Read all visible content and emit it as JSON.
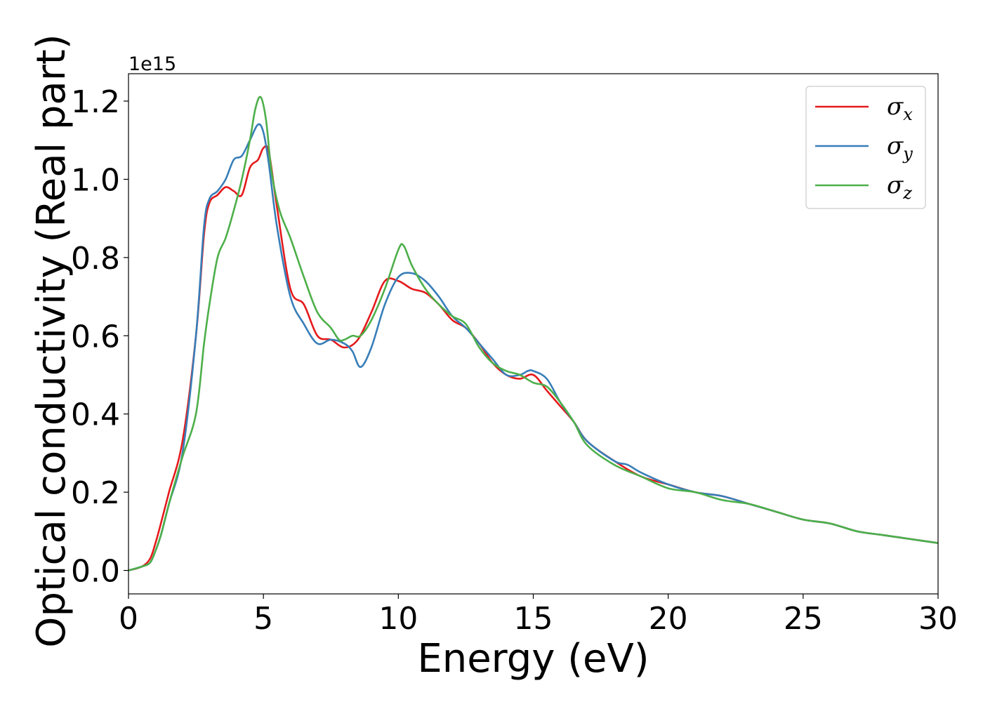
{
  "chart_data": {
    "type": "line",
    "xlabel": "Energy (eV)",
    "ylabel": "Optical conductivity (Real part)",
    "y_offset_label": "1e15",
    "xlim": [
      0,
      30
    ],
    "ylim": [
      -0.06,
      1.27
    ],
    "xticks": [
      0,
      5,
      10,
      15,
      20,
      25,
      30
    ],
    "xtick_labels": [
      "0",
      "5",
      "10",
      "15",
      "20",
      "25",
      "30"
    ],
    "yticks": [
      0.0,
      0.2,
      0.4,
      0.6,
      0.8,
      1.0,
      1.2
    ],
    "ytick_labels": [
      "0.0",
      "0.2",
      "0.4",
      "0.6",
      "0.8",
      "1.0",
      "1.2"
    ],
    "grid": false,
    "legend_position": "top-right",
    "series": [
      {
        "name": "σ",
        "subscript": "x",
        "color": "#e41a1c",
        "x": [
          0,
          0.5,
          0.8,
          1.0,
          1.2,
          1.5,
          2.0,
          2.5,
          2.8,
          3.0,
          3.3,
          3.6,
          3.9,
          4.2,
          4.5,
          4.8,
          5.0,
          5.2,
          5.5,
          6.0,
          6.5,
          7.0,
          7.5,
          8.0,
          8.5,
          9.0,
          9.5,
          10.0,
          10.5,
          11.0,
          11.5,
          12.0,
          12.5,
          13.0,
          13.5,
          14.0,
          14.5,
          15.0,
          15.5,
          16.0,
          16.5,
          17.0,
          18.0,
          19.0,
          20.0,
          21.0,
          22.0,
          23.0,
          24.0,
          25.0,
          26.0,
          27.0,
          28.0,
          29.0,
          30.0
        ],
        "y": [
          0.0,
          0.01,
          0.03,
          0.07,
          0.12,
          0.2,
          0.33,
          0.6,
          0.86,
          0.94,
          0.96,
          0.98,
          0.97,
          0.96,
          1.03,
          1.05,
          1.08,
          1.07,
          0.93,
          0.72,
          0.68,
          0.6,
          0.59,
          0.57,
          0.59,
          0.66,
          0.74,
          0.74,
          0.72,
          0.71,
          0.68,
          0.64,
          0.62,
          0.58,
          0.53,
          0.5,
          0.49,
          0.5,
          0.46,
          0.42,
          0.38,
          0.33,
          0.28,
          0.24,
          0.22,
          0.2,
          0.19,
          0.17,
          0.15,
          0.13,
          0.12,
          0.1,
          0.09,
          0.08,
          0.07
        ]
      },
      {
        "name": "σ",
        "subscript": "y",
        "color": "#377eb8",
        "x": [
          0,
          0.5,
          0.8,
          1.0,
          1.2,
          1.5,
          2.0,
          2.5,
          2.8,
          3.0,
          3.3,
          3.6,
          3.9,
          4.2,
          4.5,
          4.8,
          5.0,
          5.2,
          5.5,
          6.0,
          6.5,
          7.0,
          7.5,
          8.0,
          8.3,
          8.6,
          9.0,
          9.5,
          10.0,
          10.5,
          11.0,
          11.5,
          12.0,
          12.5,
          13.0,
          13.5,
          14.0,
          14.5,
          14.8,
          15.0,
          15.5,
          16.0,
          16.5,
          17.0,
          18.0,
          18.5,
          19.0,
          20.0,
          21.0,
          22.0,
          23.0,
          24.0,
          25.0,
          26.0,
          27.0,
          28.0,
          29.0,
          30.0
        ],
        "y": [
          0.0,
          0.01,
          0.02,
          0.05,
          0.09,
          0.17,
          0.3,
          0.6,
          0.88,
          0.95,
          0.97,
          1.0,
          1.05,
          1.06,
          1.1,
          1.14,
          1.12,
          1.04,
          0.88,
          0.7,
          0.63,
          0.58,
          0.59,
          0.58,
          0.56,
          0.52,
          0.57,
          0.68,
          0.75,
          0.76,
          0.74,
          0.7,
          0.65,
          0.62,
          0.58,
          0.54,
          0.5,
          0.5,
          0.51,
          0.51,
          0.49,
          0.43,
          0.38,
          0.33,
          0.28,
          0.27,
          0.25,
          0.22,
          0.2,
          0.19,
          0.17,
          0.15,
          0.13,
          0.12,
          0.1,
          0.09,
          0.08,
          0.07
        ]
      },
      {
        "name": "σ",
        "subscript": "z",
        "color": "#4daf4a",
        "x": [
          0,
          0.5,
          0.8,
          1.0,
          1.2,
          1.5,
          2.0,
          2.5,
          2.8,
          3.0,
          3.3,
          3.6,
          3.9,
          4.2,
          4.5,
          4.7,
          4.9,
          5.1,
          5.3,
          5.6,
          6.0,
          6.5,
          7.0,
          7.5,
          7.8,
          8.0,
          8.3,
          8.6,
          9.0,
          9.5,
          10.0,
          10.2,
          10.5,
          11.0,
          11.5,
          12.0,
          12.5,
          13.0,
          13.5,
          14.0,
          14.5,
          15.0,
          15.5,
          16.0,
          16.5,
          17.0,
          18.0,
          19.0,
          20.0,
          21.0,
          22.0,
          23.0,
          24.0,
          25.0,
          26.0,
          27.0,
          28.0,
          29.0,
          30.0
        ],
        "y": [
          0.0,
          0.01,
          0.02,
          0.05,
          0.09,
          0.17,
          0.29,
          0.4,
          0.58,
          0.68,
          0.8,
          0.85,
          0.92,
          1.0,
          1.1,
          1.18,
          1.21,
          1.15,
          1.02,
          0.92,
          0.85,
          0.75,
          0.66,
          0.62,
          0.59,
          0.59,
          0.6,
          0.6,
          0.64,
          0.72,
          0.82,
          0.83,
          0.78,
          0.72,
          0.68,
          0.65,
          0.63,
          0.57,
          0.53,
          0.51,
          0.5,
          0.48,
          0.47,
          0.43,
          0.38,
          0.32,
          0.27,
          0.24,
          0.21,
          0.2,
          0.18,
          0.17,
          0.15,
          0.13,
          0.12,
          0.1,
          0.09,
          0.08,
          0.07
        ]
      }
    ]
  }
}
